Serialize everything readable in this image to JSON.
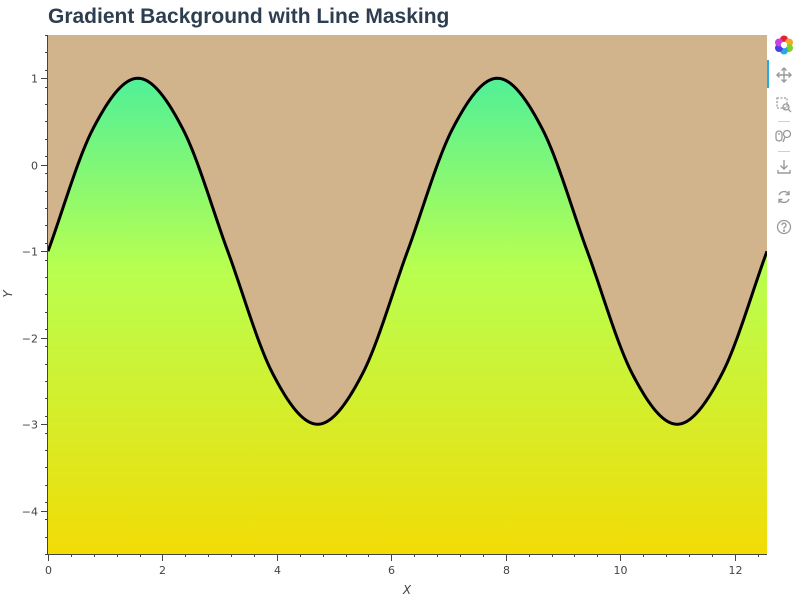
{
  "chart_data": {
    "type": "area",
    "title": "Gradient Background with Line Masking",
    "xlabel": "X",
    "ylabel": "Y",
    "xlim": [
      0,
      12.566
    ],
    "ylim": [
      -4.5,
      1.5
    ],
    "x_ticks": [
      0,
      2,
      4,
      6,
      8,
      10,
      12
    ],
    "y_ticks": [
      1,
      0,
      -1,
      -2,
      -3,
      -4
    ],
    "x_tick_labels": [
      "0",
      "2",
      "4",
      "6",
      "8",
      "10",
      "12"
    ],
    "y_tick_labels": [
      "1",
      "0",
      "−1",
      "−2",
      "−3",
      "−4"
    ],
    "series": [
      {
        "curve": "y = 2·sin(x) − 1",
        "x": [
          0,
          0.785,
          1.571,
          2.356,
          3.142,
          3.927,
          4.712,
          5.498,
          6.283,
          7.069,
          7.854,
          8.639,
          9.425,
          10.21,
          10.996,
          11.781,
          12.566
        ],
        "y": [
          -1,
          0.414,
          1,
          0.414,
          -1,
          -2.414,
          -3,
          -2.414,
          -1,
          0.414,
          1,
          0.414,
          -1,
          -2.414,
          -3,
          -2.414,
          -1
        ],
        "line_color": "#000000"
      }
    ],
    "masked_fill_color": "#d2b48c",
    "gradient_colors": [
      "#50f098",
      "#b8ff50",
      "#f2dc06"
    ],
    "gradient_range": [
      1,
      -4.5
    ],
    "grid": false,
    "legend": "none"
  },
  "toolbar": {
    "tools": [
      {
        "name": "bokeh-logo-icon",
        "icon": "bokeh-logo"
      },
      {
        "name": "pan-tool-icon",
        "icon": "pan",
        "active": true
      },
      {
        "name": "box-zoom-tool-icon",
        "icon": "box-zoom"
      },
      {
        "name": "wheel-zoom-tool-icon",
        "icon": "wheel-zoom"
      },
      {
        "name": "save-tool-icon",
        "icon": "save"
      },
      {
        "name": "reset-tool-icon",
        "icon": "reset"
      },
      {
        "name": "help-tool-icon",
        "icon": "help"
      }
    ]
  }
}
